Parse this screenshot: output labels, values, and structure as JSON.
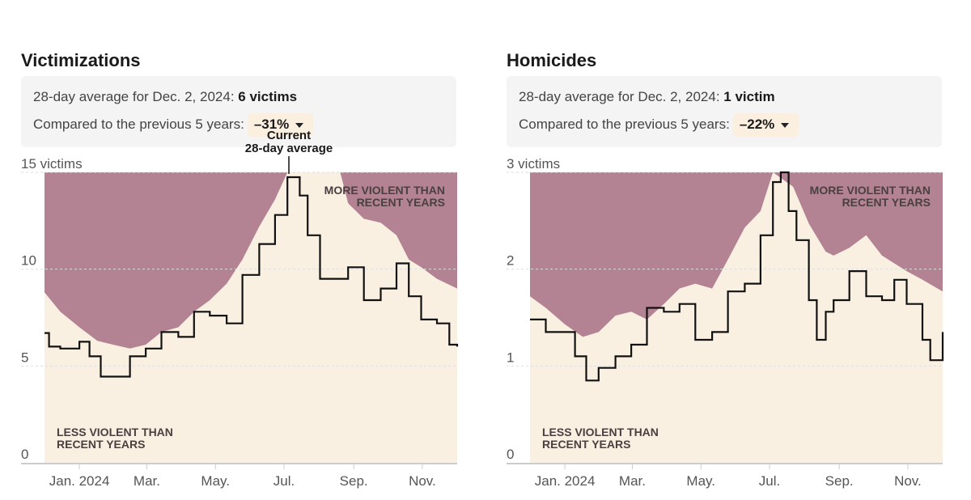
{
  "colors": {
    "above": "#b38394",
    "below": "#faf0e2",
    "line": "#111111",
    "grid": "#cccccc"
  },
  "panels": [
    {
      "title": "Victimizations",
      "summary_prefix": "28-day average for Dec. 2, 2024:",
      "summary_value": "6 victims",
      "compare_label": "Compared to the previous 5 years:",
      "compare_value": "–31%",
      "dropdown_icon": "caret-down-icon"
    },
    {
      "title": "Homicides",
      "summary_prefix": "28-day average for Dec. 2, 2024:",
      "summary_value": "1 victim",
      "compare_label": "Compared to the previous 5 years:",
      "compare_value": "–22%",
      "dropdown_icon": "caret-down-icon"
    }
  ],
  "chart_data": [
    {
      "type": "area",
      "ylim": [
        0,
        15
      ],
      "xlim": [
        "2023-12-01",
        "2024-12-02"
      ],
      "yticks": [
        {
          "v": 0,
          "label": "0"
        },
        {
          "v": 5,
          "label": "5"
        },
        {
          "v": 10,
          "label": "10"
        },
        {
          "v": 15,
          "label": "15 victims"
        }
      ],
      "xticks": [
        {
          "d": "2024-01-01",
          "label": "Jan. 2024"
        },
        {
          "d": "2024-03-01",
          "label": "Mar."
        },
        {
          "d": "2024-05-01",
          "label": "May."
        },
        {
          "d": "2024-07-01",
          "label": "Jul."
        },
        {
          "d": "2024-09-01",
          "label": "Sep."
        },
        {
          "d": "2024-11-01",
          "label": "Nov."
        }
      ],
      "grid": true,
      "annotations": {
        "above": "MORE VIOLENT THAN|RECENT YEARS",
        "below": "LESS VIOLENT THAN|RECENT YEARS",
        "current": "Current|28-day average"
      },
      "baseline": [
        [
          "2023-12-01",
          8.8
        ],
        [
          "2023-12-15",
          7.8
        ],
        [
          "2024-01-01",
          7.0
        ],
        [
          "2024-01-17",
          6.3
        ],
        [
          "2024-01-31",
          6.1
        ],
        [
          "2024-02-15",
          5.9
        ],
        [
          "2024-02-29",
          6.1
        ],
        [
          "2024-03-14",
          6.75
        ],
        [
          "2024-03-29",
          7.0
        ],
        [
          "2024-04-12",
          7.8
        ],
        [
          "2024-04-26",
          8.4
        ],
        [
          "2024-05-11",
          9.25
        ],
        [
          "2024-05-25",
          10.5
        ],
        [
          "2024-06-09",
          12.2
        ],
        [
          "2024-06-23",
          13.6
        ],
        [
          "2024-07-04",
          15.2
        ],
        [
          "2024-07-22",
          15.5
        ],
        [
          "2024-08-05",
          15.3
        ],
        [
          "2024-08-20",
          15.0
        ],
        [
          "2024-08-27",
          13.4
        ],
        [
          "2024-09-10",
          12.6
        ],
        [
          "2024-09-25",
          12.4
        ],
        [
          "2024-10-09",
          11.75
        ],
        [
          "2024-10-20",
          10.5
        ],
        [
          "2024-10-31",
          10.1
        ],
        [
          "2024-11-14",
          9.5
        ],
        [
          "2024-12-02",
          9.0
        ]
      ],
      "current": [
        [
          "2023-12-01",
          6.7
        ],
        [
          "2023-12-05",
          6.0
        ],
        [
          "2023-12-15",
          5.9
        ],
        [
          "2024-01-01",
          6.25
        ],
        [
          "2024-01-10",
          5.5
        ],
        [
          "2024-01-20",
          4.45
        ],
        [
          "2024-01-31",
          4.45
        ],
        [
          "2024-02-15",
          5.5
        ],
        [
          "2024-02-29",
          5.9
        ],
        [
          "2024-03-14",
          6.75
        ],
        [
          "2024-03-29",
          6.5
        ],
        [
          "2024-04-12",
          7.8
        ],
        [
          "2024-04-26",
          7.6
        ],
        [
          "2024-05-11",
          7.2
        ],
        [
          "2024-05-25",
          9.7
        ],
        [
          "2024-06-09",
          11.3
        ],
        [
          "2024-06-23",
          12.8
        ],
        [
          "2024-07-04",
          14.75
        ],
        [
          "2024-07-15",
          13.8
        ],
        [
          "2024-07-22",
          11.75
        ],
        [
          "2024-08-02",
          9.5
        ],
        [
          "2024-08-20",
          9.5
        ],
        [
          "2024-08-27",
          10.1
        ],
        [
          "2024-09-10",
          8.4
        ],
        [
          "2024-09-25",
          9.0
        ],
        [
          "2024-10-09",
          10.3
        ],
        [
          "2024-10-20",
          8.6
        ],
        [
          "2024-10-31",
          7.4
        ],
        [
          "2024-11-14",
          7.2
        ],
        [
          "2024-11-25",
          6.1
        ],
        [
          "2024-12-02",
          6.0
        ]
      ]
    },
    {
      "type": "area",
      "ylim": [
        0,
        3
      ],
      "xlim": [
        "2023-12-01",
        "2024-12-02"
      ],
      "yticks": [
        {
          "v": 0,
          "label": "0"
        },
        {
          "v": 1,
          "label": "1"
        },
        {
          "v": 2,
          "label": "2"
        },
        {
          "v": 3,
          "label": "3 victims"
        }
      ],
      "xticks": [
        {
          "d": "2024-01-01",
          "label": "Jan. 2024"
        },
        {
          "d": "2024-03-01",
          "label": "Mar."
        },
        {
          "d": "2024-05-01",
          "label": "May."
        },
        {
          "d": "2024-07-01",
          "label": "Jul."
        },
        {
          "d": "2024-09-01",
          "label": "Sep."
        },
        {
          "d": "2024-11-01",
          "label": "Nov."
        }
      ],
      "grid": true,
      "annotations": {
        "above": "MORE VIOLENT THAN|RECENT YEARS",
        "below": "LESS VIOLENT THAN|RECENT YEARS"
      },
      "baseline": [
        [
          "2023-12-01",
          1.72
        ],
        [
          "2023-12-15",
          1.6
        ],
        [
          "2024-01-01",
          1.43
        ],
        [
          "2024-01-17",
          1.3
        ],
        [
          "2024-01-31",
          1.35
        ],
        [
          "2024-02-15",
          1.52
        ],
        [
          "2024-02-29",
          1.56
        ],
        [
          "2024-03-14",
          1.48
        ],
        [
          "2024-03-29",
          1.64
        ],
        [
          "2024-04-12",
          1.8
        ],
        [
          "2024-04-26",
          1.85
        ],
        [
          "2024-05-11",
          1.8
        ],
        [
          "2024-05-25",
          2.1
        ],
        [
          "2024-06-09",
          2.43
        ],
        [
          "2024-06-23",
          2.6
        ],
        [
          "2024-07-04",
          3.0
        ],
        [
          "2024-07-22",
          2.85
        ],
        [
          "2024-08-05",
          2.47
        ],
        [
          "2024-08-20",
          2.18
        ],
        [
          "2024-08-27",
          2.14
        ],
        [
          "2024-09-10",
          2.22
        ],
        [
          "2024-09-25",
          2.35
        ],
        [
          "2024-10-09",
          2.14
        ],
        [
          "2024-10-20",
          2.06
        ],
        [
          "2024-10-31",
          1.98
        ],
        [
          "2024-11-14",
          1.89
        ],
        [
          "2024-12-02",
          1.77
        ]
      ],
      "current": [
        [
          "2023-12-01",
          1.48
        ],
        [
          "2023-12-15",
          1.35
        ],
        [
          "2024-01-01",
          1.35
        ],
        [
          "2024-01-10",
          1.1
        ],
        [
          "2024-01-20",
          0.85
        ],
        [
          "2024-01-31",
          0.98
        ],
        [
          "2024-02-15",
          1.1
        ],
        [
          "2024-02-29",
          1.22
        ],
        [
          "2024-03-14",
          1.6
        ],
        [
          "2024-03-29",
          1.56
        ],
        [
          "2024-04-12",
          1.64
        ],
        [
          "2024-04-26",
          1.27
        ],
        [
          "2024-05-11",
          1.35
        ],
        [
          "2024-05-25",
          1.77
        ],
        [
          "2024-06-09",
          1.85
        ],
        [
          "2024-06-23",
          2.35
        ],
        [
          "2024-07-04",
          2.9
        ],
        [
          "2024-07-11",
          3.1
        ],
        [
          "2024-07-18",
          2.6
        ],
        [
          "2024-07-25",
          2.3
        ],
        [
          "2024-08-05",
          1.68
        ],
        [
          "2024-08-12",
          1.27
        ],
        [
          "2024-08-20",
          1.56
        ],
        [
          "2024-08-27",
          1.68
        ],
        [
          "2024-09-10",
          1.98
        ],
        [
          "2024-09-25",
          1.72
        ],
        [
          "2024-10-09",
          1.68
        ],
        [
          "2024-10-20",
          1.89
        ],
        [
          "2024-10-31",
          1.64
        ],
        [
          "2024-11-14",
          1.27
        ],
        [
          "2024-11-21",
          1.06
        ],
        [
          "2024-12-02",
          1.35
        ]
      ]
    }
  ]
}
